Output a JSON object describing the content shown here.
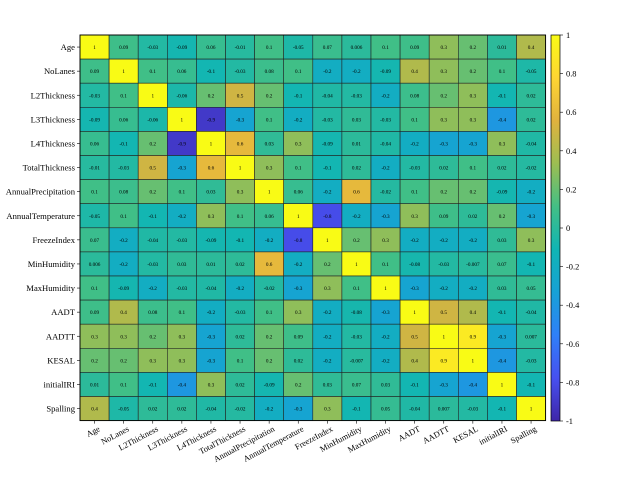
{
  "chart_data": {
    "type": "heatmap",
    "title": "",
    "xlabel": "",
    "ylabel": "",
    "labels": [
      "Age",
      "NoLanes",
      "L2Thickness",
      "L3Thickness",
      "L4Thickness",
      "TotalThickness",
      "AnnualPrecipitation",
      "AnnualTemperature",
      "FreezeIndex",
      "MinHumidity",
      "MaxHumidity",
      "AADT",
      "AADTT",
      "KESAL",
      "initialIRI",
      "Spalling"
    ],
    "values": [
      [
        "1",
        "0.09",
        "-0.03",
        "-0.09",
        "0.06",
        "-0.01",
        "0.1",
        "-0.05",
        "0.07",
        "0.006",
        "0.1",
        "0.09",
        "0.3",
        "0.2",
        "0.01",
        "0.4"
      ],
      [
        "0.09",
        "1",
        "0.1",
        "0.06",
        "-0.1",
        "-0.03",
        "0.08",
        "0.1",
        "-0.2",
        "-0.2",
        "-0.09",
        "0.4",
        "0.3",
        "0.2",
        "0.1",
        "-0.05"
      ],
      [
        "-0.03",
        "0.1",
        "1",
        "-0.06",
        "0.2",
        "0.5",
        "0.2",
        "-0.1",
        "-0.04",
        "-0.03",
        "-0.2",
        "0.08",
        "0.2",
        "0.3",
        "-0.1",
        "0.02"
      ],
      [
        "-0.09",
        "0.06",
        "-0.06",
        "1",
        "-0.9",
        "-0.3",
        "0.1",
        "-0.2",
        "-0.03",
        "0.03",
        "-0.03",
        "0.1",
        "0.3",
        "0.3",
        "-0.4",
        "0.02"
      ],
      [
        "0.06",
        "-0.1",
        "0.2",
        "-0.9",
        "1",
        "0.6",
        "0.03",
        "0.3",
        "-0.09",
        "0.01",
        "-0.04",
        "-0.2",
        "-0.3",
        "-0.3",
        "0.3",
        "-0.04"
      ],
      [
        "-0.01",
        "-0.03",
        "0.5",
        "-0.3",
        "0.6",
        "1",
        "0.3",
        "0.1",
        "-0.1",
        "0.02",
        "-0.2",
        "-0.03",
        "0.02",
        "0.1",
        "0.02",
        "-0.02"
      ],
      [
        "0.1",
        "0.08",
        "0.2",
        "0.1",
        "0.03",
        "0.3",
        "1",
        "0.06",
        "-0.2",
        "0.6",
        "-0.02",
        "0.1",
        "0.2",
        "0.2",
        "-0.09",
        "-0.2"
      ],
      [
        "-0.05",
        "0.1",
        "-0.1",
        "-0.2",
        "0.3",
        "0.1",
        "0.06",
        "1",
        "-0.8",
        "-0.2",
        "-0.3",
        "0.3",
        "0.09",
        "0.02",
        "0.2",
        "-0.3"
      ],
      [
        "0.07",
        "-0.2",
        "-0.04",
        "-0.03",
        "-0.09",
        "-0.1",
        "-0.2",
        "-0.8",
        "1",
        "0.2",
        "0.3",
        "-0.2",
        "-0.2",
        "-0.2",
        "0.03",
        "0.3"
      ],
      [
        "0.006",
        "-0.2",
        "-0.03",
        "0.03",
        "0.01",
        "0.02",
        "0.6",
        "-0.2",
        "0.2",
        "1",
        "0.1",
        "-0.08",
        "-0.03",
        "-0.007",
        "0.07",
        "-0.1"
      ],
      [
        "0.1",
        "-0.09",
        "-0.2",
        "-0.03",
        "-0.04",
        "-0.2",
        "-0.02",
        "-0.3",
        "0.3",
        "0.1",
        "1",
        "-0.3",
        "-0.2",
        "-0.2",
        "0.03",
        "0.05"
      ],
      [
        "0.09",
        "0.4",
        "0.08",
        "0.1",
        "-0.2",
        "-0.03",
        "0.1",
        "0.3",
        "-0.2",
        "-0.08",
        "-0.3",
        "1",
        "0.5",
        "0.4",
        "-0.1",
        "-0.04"
      ],
      [
        "0.3",
        "0.3",
        "0.2",
        "0.3",
        "-0.3",
        "0.02",
        "0.2",
        "0.09",
        "-0.2",
        "-0.03",
        "-0.2",
        "0.5",
        "1",
        "0.9",
        "-0.3",
        "0.007"
      ],
      [
        "0.2",
        "0.2",
        "0.3",
        "0.3",
        "-0.3",
        "0.1",
        "0.2",
        "0.02",
        "-0.2",
        "-0.007",
        "-0.2",
        "0.4",
        "0.9",
        "1",
        "-0.4",
        "-0.03"
      ],
      [
        "0.01",
        "0.1",
        "-0.1",
        "-0.4",
        "0.3",
        "0.02",
        "-0.09",
        "0.2",
        "0.03",
        "0.07",
        "0.03",
        "-0.1",
        "-0.3",
        "-0.4",
        "1",
        "-0.1"
      ],
      [
        "0.4",
        "-0.05",
        "0.02",
        "0.02",
        "-0.04",
        "-0.02",
        "-0.2",
        "-0.3",
        "0.3",
        "-0.1",
        "0.05",
        "-0.04",
        "0.007",
        "-0.03",
        "-0.1",
        "1"
      ]
    ],
    "colorbar": {
      "min": -1,
      "max": 1,
      "ticks": [
        "1",
        "0.8",
        "0.6",
        "0.4",
        "0.2",
        "0",
        "-0.2",
        "-0.4",
        "-0.6",
        "-0.8",
        "-1"
      ]
    },
    "colormap": [
      "#3e26a8",
      "#4750f0",
      "#2f80f8",
      "#17a1d6",
      "#10b5b4",
      "#43bf85",
      "#9cbe52",
      "#e0b23e",
      "#fed533",
      "#f9fb15"
    ],
    "grid": true
  }
}
